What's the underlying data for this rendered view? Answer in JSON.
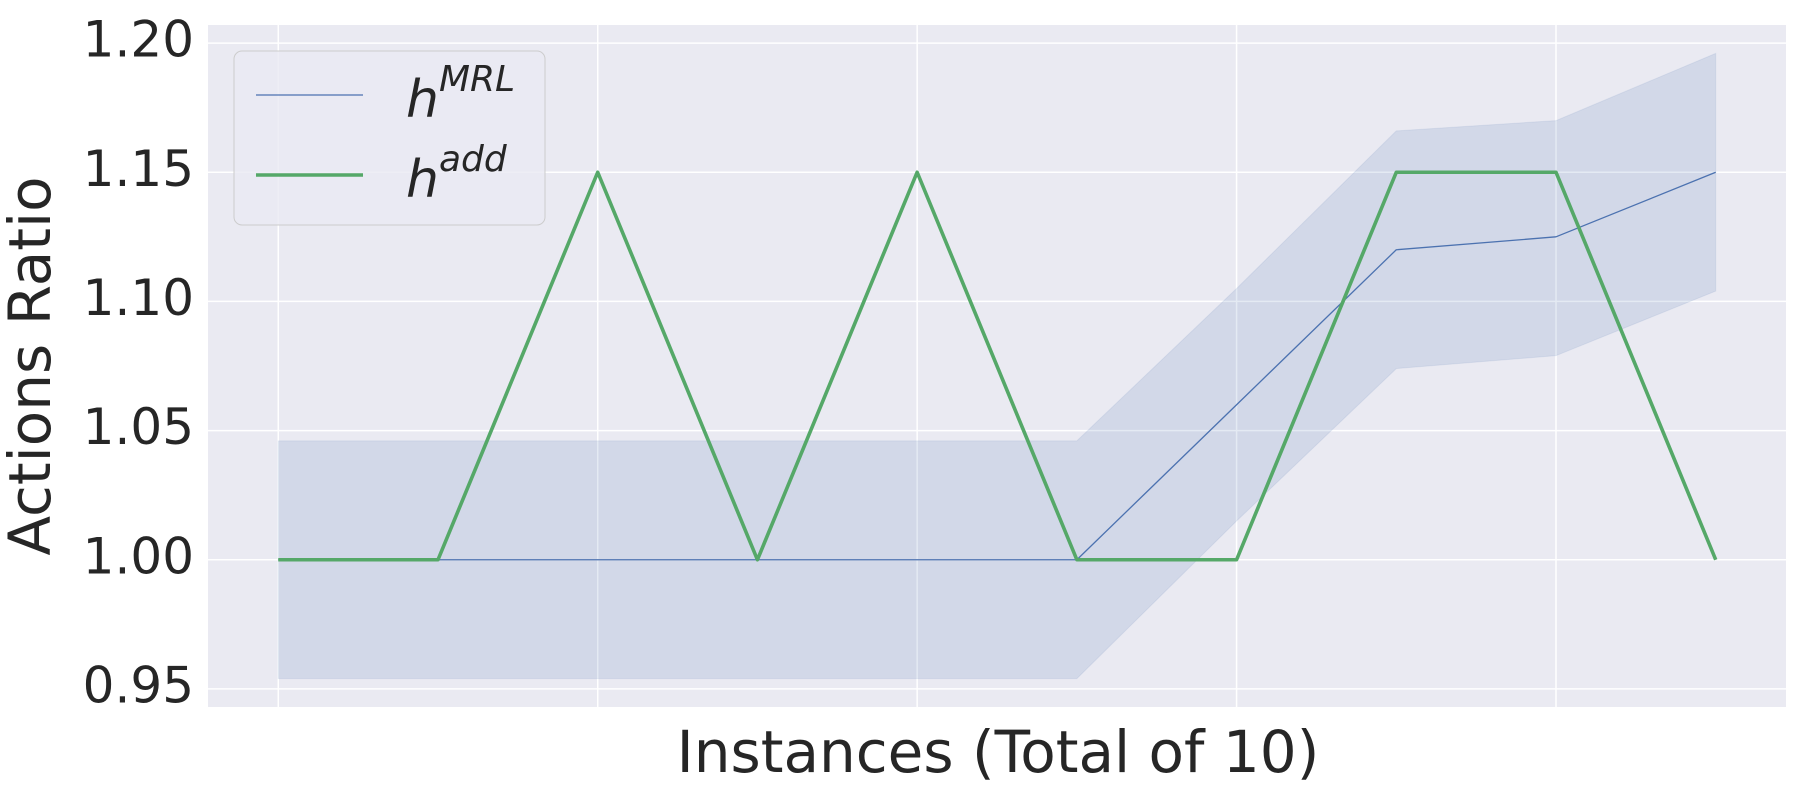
{
  "chart_data": {
    "type": "line",
    "xlabel": "Instances (Total of 10)",
    "ylabel": "Actions Ratio",
    "x": [
      0,
      1,
      2,
      3,
      4,
      5,
      6,
      7,
      8,
      9
    ],
    "series": [
      {
        "name": "h^MRL",
        "color": "#4c72b0",
        "values": [
          1.0,
          1.0,
          1.0,
          1.0,
          1.0,
          1.0,
          1.06,
          1.12,
          1.125,
          1.15
        ],
        "lower": [
          0.954,
          0.954,
          0.954,
          0.954,
          0.954,
          0.954,
          1.015,
          1.074,
          1.079,
          1.104
        ],
        "upper": [
          1.046,
          1.046,
          1.046,
          1.046,
          1.046,
          1.046,
          1.105,
          1.166,
          1.17,
          1.196
        ]
      },
      {
        "name": "h^add",
        "color": "#55a868",
        "values": [
          1.0,
          1.0,
          1.15,
          1.0,
          1.15,
          1.0,
          1.0,
          1.15,
          1.15,
          1.0
        ]
      }
    ],
    "xlim": [
      -0.44,
      9.44
    ],
    "xticks": [
      0,
      2,
      4,
      6,
      8
    ],
    "ylim": [
      0.943,
      1.207
    ],
    "yticks": [
      {
        "value": 0.95,
        "label": "0.95"
      },
      {
        "value": 1.0,
        "label": "1.00"
      },
      {
        "value": 1.05,
        "label": "1.05"
      },
      {
        "value": 1.1,
        "label": "1.10"
      },
      {
        "value": 1.15,
        "label": "1.15"
      },
      {
        "value": 1.2,
        "label": "1.20"
      }
    ],
    "grid": true,
    "legend": "upper left"
  }
}
